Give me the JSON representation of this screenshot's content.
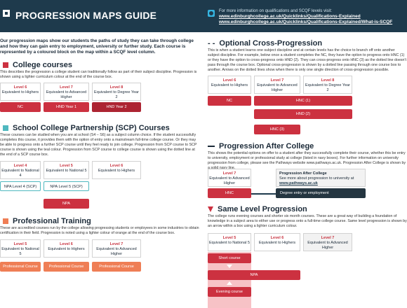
{
  "header": {
    "title": "PROGRESSION MAPS GUIDE",
    "info": "For more information on qualifications and SCQF levels visit:",
    "link1": "www.edinburghcollege.ac.uk/Quicklinks/Qualifications-Explained",
    "link2": "www.edinburghcollege.ac.uk/Quicklinks/Qualifications-Explained/What-is-SCQF"
  },
  "intro": "Our progression maps show our students the paths of study they can take through college and how they can gain entry to employment, university or further study. Each course is represented by a coloured block on the map within a SCQF level column.",
  "college": {
    "title": "College courses",
    "body": "This describes the progression a college student can traditionally follow as part of their subject discipline. Progression is shown using a lighter curriculum colour at the end of the course box.",
    "levels": [
      {
        "n": "Level 6",
        "d": "Equivalent to Highers"
      },
      {
        "n": "Level 7",
        "d": "Equivalent to Advanced Higher"
      },
      {
        "n": "Level 8",
        "d": "Equivalent to Degree Year 2"
      }
    ],
    "bars": [
      "NC",
      "HND Year 1",
      "HND Year 2"
    ]
  },
  "scp": {
    "title": "School College Partnership (SCP) Courses",
    "body": "These courses can be studied when you are at school (S4 – S6) as a subject column choice. If the student successfully completes this course, it provides them with the option of entry onto a mainstream full-time college course. Or they may be able to progress onto a further SCP course until they feel ready to join college. Progression from SCP course to SCP course is shown using the teal colour. Progression from SCP course to college course is shown using the dotted line at the end of a SCP course box.",
    "levels": [
      {
        "n": "Level 4",
        "d": "Equivalent to National 4"
      },
      {
        "n": "Level 5",
        "d": "Equivalent to National 5"
      },
      {
        "n": "Level 6",
        "d": "Equivalent to Highers"
      }
    ],
    "bars": [
      "NPA Level 4 (SCP)",
      "NPA Level 5 (SCP)",
      "NPA"
    ]
  },
  "prof": {
    "title": "Professional Training",
    "body": "These are accredited courses run by the college allowing progressing students or employees in some industries to obtain certification in their field. Progression is noted using a lighter colour of orange at the end of the course box.",
    "levels": [
      {
        "n": "Level 5",
        "d": "Equivalent to National 5"
      },
      {
        "n": "Level 6",
        "d": "Equivalent to Highers"
      },
      {
        "n": "Level 7",
        "d": "Equivalent to Advanced Higher"
      }
    ],
    "bars": [
      "Professional Course",
      "Professional Course",
      "Professional Course"
    ]
  },
  "cross": {
    "prefix": "- -",
    "title": "Optional Cross-Progression",
    "body": "This is when a student learns one subject discipline and at certain levels has the choice to branch off onto another subject discipline. For example, below once a student completes the NC, they have the option to progress onto HNC (1) or they have the option to cross-progress onto HND (2). They can cross-progress onto HNC (3) as the dotted line doesn't pass through the course box. Optional cross-progression is shown by a dotted line passing through one course box to another. Arrows on the dotted lines show when there is only one single direction of cross-progression possible.",
    "levels": [
      {
        "n": "Level 6",
        "d": "Equivalent to Highers"
      },
      {
        "n": "Level 7",
        "d": "Equivalent to Advanced Higher"
      },
      {
        "n": "Level 8",
        "d": "Equivalent to Degree Year 2"
      }
    ],
    "bars": [
      "NC",
      "HNC (1)",
      "HND (2)",
      "HNC (3)"
    ]
  },
  "after": {
    "title": "Progression After College",
    "body": "This shows the potential options on offer to a student after they successfully complete their course, whether this be entry to university, employment or professional study at college (listed in navy boxes). For further information on university progression from college, please see the Pathways website www.pathways.ac.uk. Progression After College is shown by a solid navy line.",
    "level": {
      "n": "Level 7",
      "d": "Equivalent to Advanced Higher"
    },
    "box_title": "Progression After College",
    "box_text": "See more about progression to university at",
    "box_link": "www.pathways.ac.uk",
    "bars": [
      "HNC",
      "Degree entry or employment"
    ]
  },
  "same": {
    "title": "Same Level Progression",
    "body": "The college runs evening courses and shorter six month courses. These are a great way of building a foundation of knowledge in a subject area to either use or progress onto a full-time college course. Same level progression is shown by an arrow within a box using a lighter curriculum colour.",
    "levels": [
      {
        "n": "Level 5",
        "d": "Equivalent to National 5"
      },
      {
        "n": "Level 6",
        "d": "Equivalent to Highers"
      },
      {
        "n": "Level 7",
        "d": "Equivalent to Advanced Higher"
      }
    ],
    "bars": [
      "Short course",
      "NPA",
      "Evening course"
    ]
  },
  "colors": {
    "navy": "#1e3a4c",
    "red": "#cc3140",
    "teal": "#4fb8bf",
    "orange": "#ef7e55",
    "accent": "#35b4e0"
  }
}
